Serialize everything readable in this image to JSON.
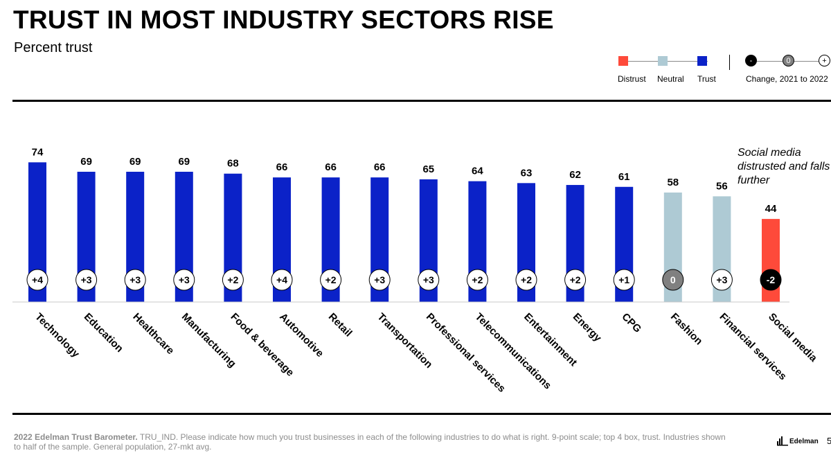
{
  "title": "TRUST IN MOST INDUSTRY SECTORS RISE",
  "subtitle": "Percent trust",
  "legend": {
    "distrust": "Distrust",
    "neutral": "Neutral",
    "trust": "Trust",
    "change_label": "Change, 2021 to 2022",
    "minus": "-",
    "zero": "0",
    "plus": "+"
  },
  "colors": {
    "distrust": "#fe4a3a",
    "neutral": "#aecad4",
    "trust": "#0b22c8",
    "change_negative": "#000000",
    "change_zero": "#808080",
    "change_positive": "#ffffff"
  },
  "annotation": "Social media distrusted and falls further",
  "footer": {
    "bold": "2022 Edelman Trust Barometer.",
    "text": " TRU_IND. Please indicate how much you trust businesses in each of the following industries to do what is right. 9-point scale; top 4 box, trust. Industries shown to half of the sample. General population, 27-mkt avg."
  },
  "brand": "Edelman",
  "page_number": "5",
  "chart_data": {
    "type": "bar",
    "categories": [
      "Technology",
      "Education",
      "Healthcare",
      "Manufacturing",
      "Food & beverage",
      "Automotive",
      "Retail",
      "Transportation",
      "Professional services",
      "Telecommunications",
      "Entertainment",
      "Energy",
      "CPG",
      "Fashion",
      "Financial services",
      "Social media"
    ],
    "values": [
      74,
      69,
      69,
      69,
      68,
      66,
      66,
      66,
      65,
      64,
      63,
      62,
      61,
      58,
      56,
      44
    ],
    "changes": [
      "+4",
      "+3",
      "+3",
      "+3",
      "+2",
      "+4",
      "+2",
      "+3",
      "+3",
      "+2",
      "+2",
      "+2",
      "+1",
      "0",
      "+3",
      "-2"
    ],
    "bar_category": [
      "trust",
      "trust",
      "trust",
      "trust",
      "trust",
      "trust",
      "trust",
      "trust",
      "trust",
      "trust",
      "trust",
      "trust",
      "trust",
      "neutral",
      "neutral",
      "distrust"
    ],
    "ylim": [
      0,
      100
    ],
    "grid": false,
    "legend_position": "top-right"
  }
}
